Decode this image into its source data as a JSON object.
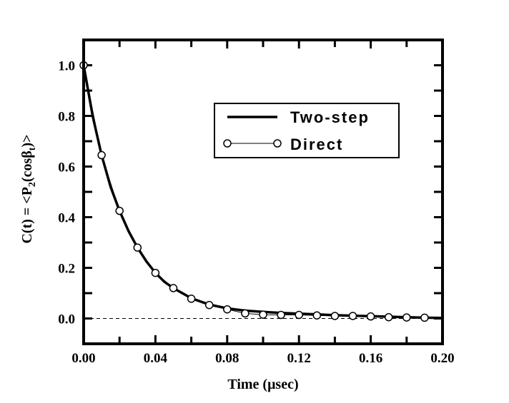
{
  "chart_data": {
    "type": "line",
    "title": "",
    "xlabel": "Time (μsec)",
    "ylabel_parts": {
      "main": "C(t) = <P",
      "sub1": "2",
      "mid": "(cosβ",
      "sub2": "t",
      "end": ")>"
    },
    "xlim": [
      0.0,
      0.2
    ],
    "ylim": [
      -0.1,
      1.1
    ],
    "xticks": [
      "0.00",
      "0.04",
      "0.08",
      "0.12",
      "0.16",
      "0.20"
    ],
    "xtick_values": [
      0.0,
      0.04,
      0.08,
      0.12,
      0.16,
      0.2
    ],
    "yticks": [
      "0.0",
      "0.2",
      "0.4",
      "0.6",
      "0.8",
      "1.0"
    ],
    "ytick_values": [
      0.0,
      0.2,
      0.4,
      0.6,
      0.8,
      1.0
    ],
    "zero_line": true,
    "legend_position": "upper-right",
    "series": [
      {
        "name": "Two-step",
        "style": "thick-line",
        "x": [
          0.0,
          0.005,
          0.01,
          0.015,
          0.02,
          0.025,
          0.03,
          0.035,
          0.04,
          0.045,
          0.05,
          0.06,
          0.07,
          0.08,
          0.09,
          0.1,
          0.11,
          0.12,
          0.13,
          0.14,
          0.15,
          0.16,
          0.17,
          0.18,
          0.19,
          0.2
        ],
        "y": [
          1.0,
          0.8,
          0.645,
          0.52,
          0.425,
          0.345,
          0.28,
          0.225,
          0.18,
          0.145,
          0.12,
          0.08,
          0.055,
          0.04,
          0.031,
          0.026,
          0.022,
          0.019,
          0.016,
          0.013,
          0.011,
          0.009,
          0.007,
          0.005,
          0.003,
          0.002
        ]
      },
      {
        "name": "Direct",
        "style": "thin-line-open-circles",
        "x": [
          0.0,
          0.01,
          0.02,
          0.03,
          0.04,
          0.05,
          0.06,
          0.07,
          0.08,
          0.09,
          0.1,
          0.11,
          0.12,
          0.13,
          0.14,
          0.15,
          0.16,
          0.17,
          0.18,
          0.19
        ],
        "y": [
          1.0,
          0.645,
          0.425,
          0.28,
          0.18,
          0.12,
          0.078,
          0.053,
          0.036,
          0.02,
          0.015,
          0.014,
          0.014,
          0.012,
          0.01,
          0.01,
          0.008,
          0.005,
          0.004,
          0.003
        ]
      }
    ]
  }
}
